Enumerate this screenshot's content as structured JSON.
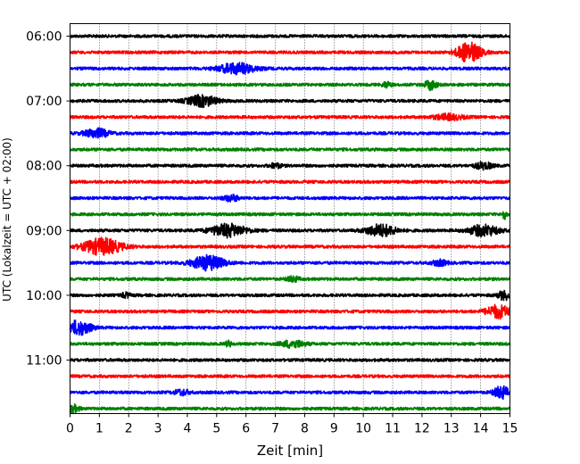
{
  "chart_data": {
    "type": "line",
    "title": "",
    "xlabel": "Zeit  [min]",
    "ylabel": "UTC (Lokalzeit = UTC + 02:00)",
    "xlim": [
      0,
      15
    ],
    "x_ticks": [
      "0",
      "1",
      "2",
      "3",
      "4",
      "5",
      "6",
      "7",
      "8",
      "9",
      "10",
      "11",
      "12",
      "13",
      "14",
      "15"
    ],
    "y_tick_labels": [
      "06:00",
      "07:00",
      "08:00",
      "09:00",
      "10:00",
      "11:00"
    ],
    "grid": "vertical dotted",
    "trace_minutes": 15,
    "trace_count": 24,
    "trace_colors": [
      "#000000",
      "#ff0000",
      "#0000ff",
      "#008000"
    ],
    "traces": [
      {
        "start": "06:00",
        "color": "#000000",
        "events": []
      },
      {
        "start": "06:15",
        "color": "#ff0000",
        "events": [
          {
            "t": 13.6,
            "amp": 11,
            "dur": 0.8
          }
        ]
      },
      {
        "start": "06:30",
        "color": "#0000ff",
        "events": [
          {
            "t": 5.7,
            "amp": 6,
            "dur": 1.2
          }
        ]
      },
      {
        "start": "06:45",
        "color": "#008000",
        "events": [
          {
            "t": 12.3,
            "amp": 5,
            "dur": 0.4
          },
          {
            "t": 10.8,
            "amp": 3,
            "dur": 0.3
          }
        ]
      },
      {
        "start": "07:00",
        "color": "#000000",
        "events": [
          {
            "t": 4.5,
            "amp": 6,
            "dur": 1.0
          }
        ]
      },
      {
        "start": "07:15",
        "color": "#ff0000",
        "events": [
          {
            "t": 12.9,
            "amp": 3,
            "dur": 1.0
          }
        ]
      },
      {
        "start": "07:30",
        "color": "#0000ff",
        "events": [
          {
            "t": 0.9,
            "amp": 5,
            "dur": 0.8
          }
        ]
      },
      {
        "start": "07:45",
        "color": "#008000",
        "events": []
      },
      {
        "start": "08:00",
        "color": "#000000",
        "events": [
          {
            "t": 14.1,
            "amp": 3.5,
            "dur": 0.6
          },
          {
            "t": 7.0,
            "amp": 2.5,
            "dur": 0.4
          }
        ]
      },
      {
        "start": "08:15",
        "color": "#ff0000",
        "events": []
      },
      {
        "start": "08:30",
        "color": "#0000ff",
        "events": [
          {
            "t": 5.5,
            "amp": 3.5,
            "dur": 0.5
          }
        ]
      },
      {
        "start": "08:45",
        "color": "#008000",
        "events": [
          {
            "t": 14.8,
            "amp": 5,
            "dur": 0.15
          }
        ]
      },
      {
        "start": "09:00",
        "color": "#000000",
        "events": [
          {
            "t": 5.4,
            "amp": 7,
            "dur": 1.2
          },
          {
            "t": 10.6,
            "amp": 6.5,
            "dur": 1.0
          },
          {
            "t": 14.1,
            "amp": 6,
            "dur": 1.0
          }
        ]
      },
      {
        "start": "09:15",
        "color": "#ff0000",
        "events": [
          {
            "t": 1.1,
            "amp": 9,
            "dur": 1.3
          }
        ]
      },
      {
        "start": "09:30",
        "color": "#0000ff",
        "events": [
          {
            "t": 4.7,
            "amp": 8,
            "dur": 1.1
          },
          {
            "t": 12.6,
            "amp": 3,
            "dur": 0.5
          }
        ]
      },
      {
        "start": "09:45",
        "color": "#008000",
        "events": [
          {
            "t": 7.6,
            "amp": 3,
            "dur": 0.4
          }
        ]
      },
      {
        "start": "10:00",
        "color": "#000000",
        "events": [
          {
            "t": 14.8,
            "amp": 5,
            "dur": 0.4
          },
          {
            "t": 1.9,
            "amp": 2.5,
            "dur": 0.3
          }
        ]
      },
      {
        "start": "10:15",
        "color": "#ff0000",
        "events": [
          {
            "t": 14.6,
            "amp": 7,
            "dur": 0.8
          }
        ]
      },
      {
        "start": "10:30",
        "color": "#0000ff",
        "events": [
          {
            "t": 0.3,
            "amp": 8,
            "dur": 0.8
          }
        ]
      },
      {
        "start": "10:45",
        "color": "#008000",
        "events": [
          {
            "t": 7.6,
            "amp": 4,
            "dur": 0.8
          },
          {
            "t": 5.4,
            "amp": 3,
            "dur": 0.2
          }
        ]
      },
      {
        "start": "11:00",
        "color": "#000000",
        "events": []
      },
      {
        "start": "11:15",
        "color": "#ff0000",
        "events": []
      },
      {
        "start": "11:30",
        "color": "#0000ff",
        "events": [
          {
            "t": 14.7,
            "amp": 7,
            "dur": 0.5
          },
          {
            "t": 3.8,
            "amp": 3,
            "dur": 0.5
          }
        ]
      },
      {
        "start": "11:45",
        "color": "#008000",
        "events": [
          {
            "t": 0.1,
            "amp": 4,
            "dur": 0.4
          }
        ]
      }
    ]
  }
}
